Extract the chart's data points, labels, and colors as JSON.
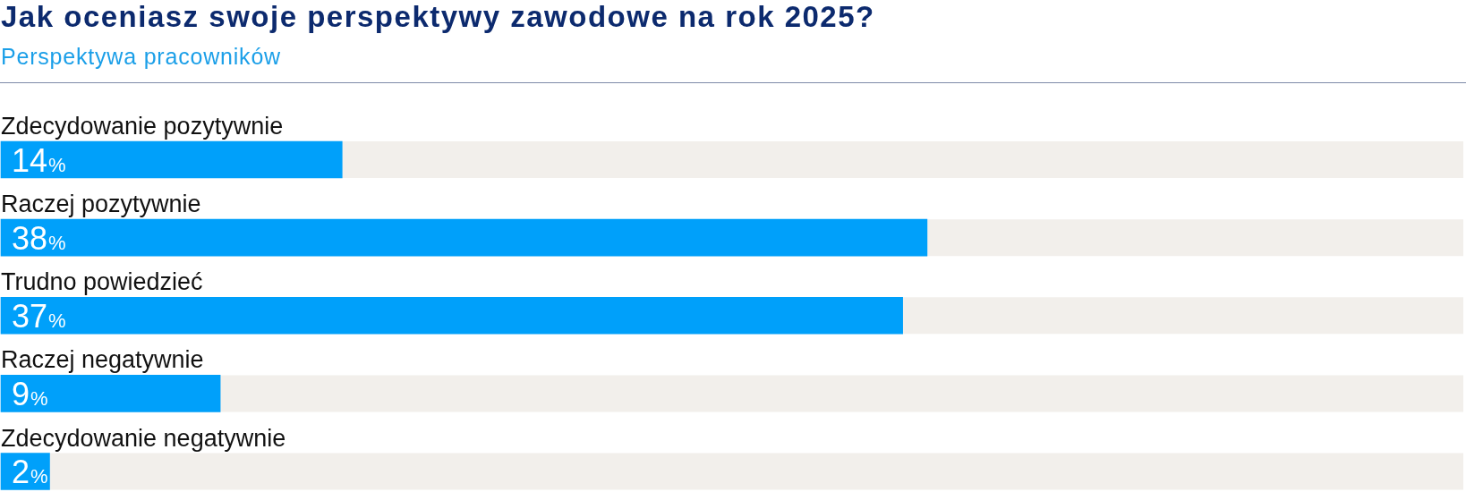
{
  "chart_data": {
    "type": "bar",
    "title": "Jak oceniasz swoje perspektywy zawodowe na rok 2025?",
    "subtitle": "Perspektywa pracowników",
    "orientation": "horizontal",
    "categories": [
      "Zdecydowanie pozytywnie",
      "Raczej pozytywnie",
      "Trudno powiedzieć",
      "Raczej negatywnie",
      "Zdecydowanie negatywnie"
    ],
    "values": [
      14,
      38,
      37,
      9,
      2
    ],
    "color": "#00a0fa",
    "xlim": [
      0,
      60
    ],
    "value_labels": [
      "14%",
      "38%",
      "37%",
      "9%",
      "2%"
    ],
    "tick_labels": "y"
  }
}
